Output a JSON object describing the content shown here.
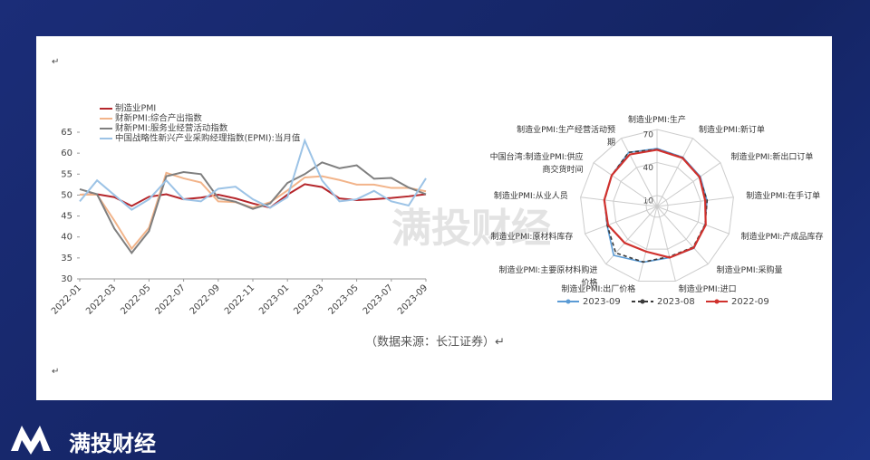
{
  "chart_data": [
    {
      "type": "line",
      "categories": [
        "2022-01",
        null,
        "2022-03",
        null,
        "2022-05",
        null,
        "2022-07",
        null,
        "2022-09",
        null,
        "2022-11",
        null,
        "2023-01",
        null,
        "2023-03",
        null,
        "2023-05",
        null,
        "2023-07",
        null,
        "2023-09"
      ],
      "series": [
        {
          "name": "制造业PMI",
          "color": "#b5262b",
          "values": [
            50.1,
            50.2,
            49.5,
            47.4,
            49.6,
            50.2,
            49.0,
            49.4,
            50.1,
            49.2,
            48.0,
            47.0,
            50.1,
            52.6,
            51.9,
            49.2,
            48.8,
            49.0,
            49.3,
            49.7,
            50.2
          ]
        },
        {
          "name": "财新PMI:综合产出指数",
          "color": "#f2b48a",
          "values": [
            50.1,
            50.1,
            43.9,
            37.2,
            42.2,
            55.3,
            54.0,
            53.0,
            48.5,
            48.3,
            47.0,
            48.3,
            51.1,
            54.2,
            54.5,
            53.6,
            52.5,
            52.5,
            51.7,
            51.7,
            50.9
          ]
        },
        {
          "name": "财新PMI:服务业经营活动指数",
          "color": "#7f7f7f",
          "values": [
            51.4,
            50.2,
            42.0,
            36.2,
            41.4,
            54.5,
            55.5,
            55.0,
            49.3,
            48.4,
            46.7,
            48.0,
            52.9,
            55.0,
            57.8,
            56.4,
            57.1,
            53.9,
            54.1,
            51.8,
            50.2
          ]
        },
        {
          "name": "中国战略性新兴产业采购经理指数(EPMI):当月值",
          "color": "#9cc3e6",
          "values": [
            48.5,
            53.5,
            50.0,
            46.5,
            49.0,
            53.5,
            49.0,
            48.5,
            51.5,
            52.0,
            49.0,
            47.0,
            49.5,
            63.0,
            53.5,
            48.5,
            49.0,
            51.0,
            48.5,
            47.5,
            54.0
          ]
        }
      ],
      "ylim": [
        30,
        65
      ],
      "yticks": [
        30,
        35,
        40,
        45,
        50,
        55,
        60,
        65
      ]
    },
    {
      "type": "radar",
      "categories": [
        "制造业PMI:生产",
        "制造业PMI:新订单",
        "制造业PMI:新出口订单",
        "制造业PMI:在手订单",
        "制造业PMI:产成品库存",
        "制造业PMI:采购量",
        "制造业PMI:进口",
        "制造业PMI:出厂价格",
        "制造业PMI:主要原材料购进价格",
        "制造业PMI:原材料库存",
        "制造业PMI:从业人员",
        "中国台湾:制造业PMI:供应商交货时间",
        "制造业PMI:生产经营活动预期"
      ],
      "series": [
        {
          "name": "2023-09",
          "color": "#5b9bd5",
          "dash": "solid",
          "values": [
            52.7,
            50.5,
            47.8,
            45.7,
            46.7,
            50.7,
            47.9,
            52.2,
            59.4,
            48.5,
            48.1,
            50.0,
            55.5
          ]
        },
        {
          "name": "2023-08",
          "color": "#3a3a3a",
          "dash": "dashed",
          "values": [
            51.9,
            50.2,
            46.7,
            45.9,
            46.6,
            49.5,
            47.0,
            52.0,
            56.5,
            48.4,
            48.0,
            50.0,
            55.6
          ]
        },
        {
          "name": "2022-09",
          "color": "#d0312d",
          "dash": "solid",
          "values": [
            51.5,
            49.8,
            47.0,
            44.1,
            47.3,
            50.2,
            47.9,
            42.2,
            44.3,
            47.6,
            48.3,
            50.0,
            53.4
          ]
        }
      ],
      "rlim": [
        0,
        70
      ],
      "rticks": [
        10,
        40,
        70
      ]
    }
  ],
  "source": "（数据来源：长江证券）↵",
  "watermark": "满投财经",
  "brand": "满投财经",
  "paragraph_marks": [
    "↵",
    "↵"
  ]
}
